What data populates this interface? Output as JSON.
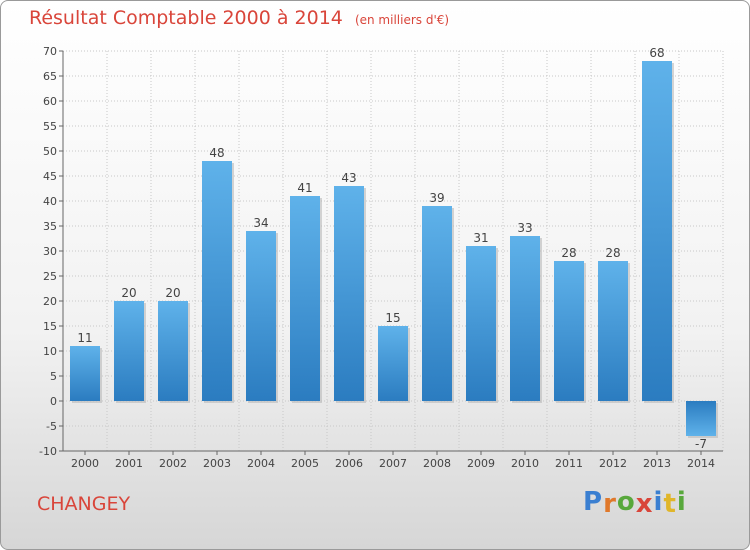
{
  "title": {
    "main": "Résultat Comptable 2000 à 2014",
    "unit": "(en milliers d'€)"
  },
  "commune": "CHANGEY",
  "logo": {
    "letters": [
      {
        "char": "P",
        "color": "#3a7fd1"
      },
      {
        "char": "r",
        "color": "#e0782a"
      },
      {
        "char": "o",
        "color": "#58a83c"
      },
      {
        "char": "x",
        "color": "#d9453a"
      },
      {
        "char": "i",
        "color": "#3a7fd1"
      },
      {
        "char": "t",
        "color": "#e0b62a"
      },
      {
        "char": "i",
        "color": "#58a83c"
      }
    ]
  },
  "chart_data": {
    "type": "bar",
    "title": "Résultat Comptable 2000 à 2014",
    "subtitle": "(en milliers d'€)",
    "categories": [
      "2000",
      "2001",
      "2002",
      "2003",
      "2004",
      "2005",
      "2006",
      "2007",
      "2008",
      "2009",
      "2010",
      "2011",
      "2012",
      "2013",
      "2014"
    ],
    "values": [
      11,
      20,
      20,
      48,
      34,
      41,
      43,
      15,
      39,
      31,
      33,
      28,
      28,
      68,
      -7
    ],
    "ylim": [
      -10,
      70
    ],
    "yticks": [
      -10,
      -5,
      0,
      5,
      10,
      15,
      20,
      25,
      30,
      35,
      40,
      45,
      50,
      55,
      60,
      65,
      70
    ],
    "grid": true,
    "bar_color_top": "#5fb2ea",
    "bar_color_bottom": "#2b7cc0"
  }
}
